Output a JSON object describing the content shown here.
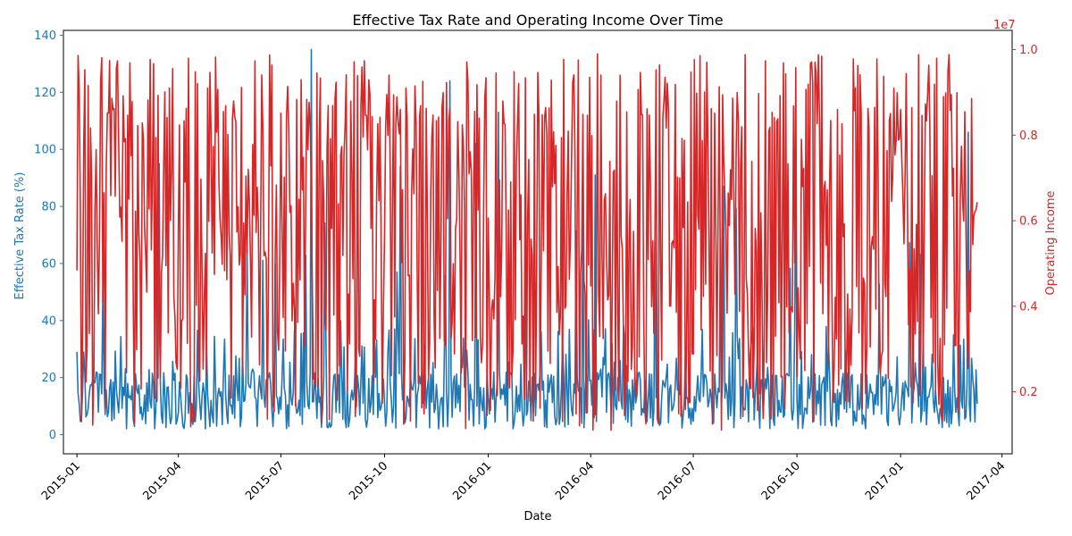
{
  "chart_data": {
    "type": "line",
    "title": "Effective Tax Rate and Operating Income Over Time",
    "xlabel": "Date",
    "x_range": [
      "2014-12-20",
      "2017-04-10"
    ],
    "x_tick_labels": [
      "2015-01",
      "2015-04",
      "2015-07",
      "2015-10",
      "2016-01",
      "2016-04",
      "2016-07",
      "2016-10",
      "2017-01",
      "2017-04"
    ],
    "x_tick_dates": [
      "2015-01-01",
      "2015-04-01",
      "2015-07-01",
      "2015-10-01",
      "2016-01-01",
      "2016-04-01",
      "2016-07-01",
      "2016-10-01",
      "2017-01-01",
      "2017-04-01"
    ],
    "date_start": "2015-01-01",
    "date_end": "2017-03-10",
    "grid": false,
    "legend": "none",
    "y_left": {
      "label": "Effective Tax Rate (%)",
      "color": "#1f77b4",
      "range": [
        -6.7,
        141.7
      ],
      "ticks": [
        0,
        20,
        40,
        60,
        80,
        100,
        120,
        140
      ],
      "tick_labels": [
        "0",
        "20",
        "40",
        "60",
        "80",
        "100",
        "120",
        "140"
      ]
    },
    "y_right": {
      "label": "Operating Income",
      "color": "#d62728",
      "range": [
        550000,
        10450000
      ],
      "ticks": [
        2000000,
        4000000,
        6000000,
        8000000,
        10000000
      ],
      "tick_labels": [
        "0.2",
        "0.4",
        "0.6",
        "0.8",
        "1.0"
      ],
      "offset_label": "1e7"
    },
    "series": [
      {
        "axis": "left",
        "color": "#1f77b4",
        "pattern": "noisy daily series, mostly 2–35 with occasional spikes",
        "typical_range": [
          1,
          35
        ],
        "spikes": [
          {
            "x": "2015-07-28",
            "y": 135
          },
          {
            "x": "2015-11-28",
            "y": 124
          },
          {
            "x": "2016-01-10",
            "y": 113
          },
          {
            "x": "2016-09-30",
            "y": 101
          },
          {
            "x": "2015-12-21",
            "y": 102
          },
          {
            "x": "2015-10-15",
            "y": 94
          },
          {
            "x": "2016-04-05",
            "y": 91
          },
          {
            "x": "2016-07-28",
            "y": 87
          },
          {
            "x": "2017-03-02",
            "y": 106
          },
          {
            "x": "2015-03-15",
            "y": 95
          },
          {
            "x": "2016-03-25",
            "y": 87
          }
        ]
      },
      {
        "axis": "right",
        "color": "#d62728",
        "pattern": "noisy daily series oscillating between about 1.0e6 and 1.0e7",
        "typical_range": [
          1100000,
          9900000
        ]
      }
    ]
  }
}
